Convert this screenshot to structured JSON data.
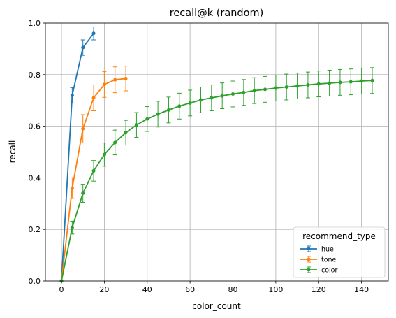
{
  "chart_data": {
    "type": "line",
    "title": "recall@k (random)",
    "xlabel": "color_count",
    "ylabel": "recall",
    "xlim": [
      -7.5,
      152.5
    ],
    "ylim": [
      0.0,
      1.0
    ],
    "x_ticks": [
      0,
      20,
      40,
      60,
      80,
      100,
      120,
      140
    ],
    "y_ticks": [
      0.0,
      0.2,
      0.4,
      0.6,
      0.8,
      1.0
    ],
    "grid": true,
    "legend": {
      "title": "recommend_type",
      "placement": "lower-right"
    },
    "series": [
      {
        "name": "hue",
        "color": "#1f77b4",
        "x": [
          0,
          5,
          10,
          15
        ],
        "y": [
          0.0,
          0.72,
          0.905,
          0.96
        ],
        "err": [
          0.0,
          0.03,
          0.03,
          0.025
        ]
      },
      {
        "name": "tone",
        "color": "#ff7f0e",
        "x": [
          0,
          5,
          10,
          15,
          20,
          25,
          30
        ],
        "y": [
          0.0,
          0.36,
          0.59,
          0.71,
          0.762,
          0.78,
          0.785
        ],
        "err": [
          0.0,
          0.04,
          0.055,
          0.05,
          0.05,
          0.05,
          0.048
        ]
      },
      {
        "name": "color",
        "color": "#2ca02c",
        "x": [
          0,
          5,
          10,
          15,
          20,
          25,
          30,
          35,
          40,
          45,
          50,
          55,
          60,
          65,
          70,
          75,
          80,
          85,
          90,
          95,
          100,
          105,
          110,
          115,
          120,
          125,
          130,
          135,
          140,
          145
        ],
        "y": [
          0.0,
          0.207,
          0.34,
          0.427,
          0.49,
          0.537,
          0.575,
          0.605,
          0.628,
          0.647,
          0.663,
          0.678,
          0.69,
          0.702,
          0.71,
          0.718,
          0.725,
          0.731,
          0.738,
          0.743,
          0.748,
          0.752,
          0.756,
          0.76,
          0.764,
          0.767,
          0.77,
          0.772,
          0.775,
          0.777
        ],
        "err": [
          0.0,
          0.025,
          0.035,
          0.04,
          0.045,
          0.048,
          0.048,
          0.048,
          0.048,
          0.05,
          0.05,
          0.05,
          0.05,
          0.05,
          0.05,
          0.05,
          0.05,
          0.05,
          0.05,
          0.05,
          0.05,
          0.05,
          0.05,
          0.05,
          0.05,
          0.05,
          0.05,
          0.05,
          0.05,
          0.05
        ]
      }
    ]
  }
}
